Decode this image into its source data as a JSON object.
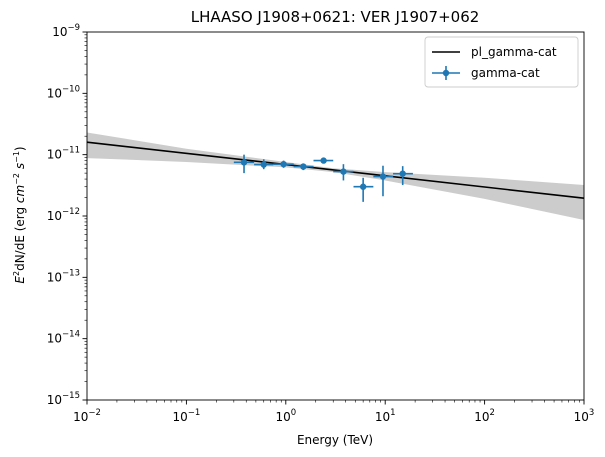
{
  "chart_data": {
    "type": "scatter",
    "title": "LHAASO J1908+0621: VER J1907+062",
    "xlabel": "Energy (TeV)",
    "ylabel": {
      "prefix": "E",
      "prefix_sup": "2",
      "main": "dN/dE (erg ",
      "unit1": "cm",
      "unit1_sup": "−2",
      "unit2": "s",
      "unit2_sup": "−1",
      "suffix": ")"
    },
    "x_scale": "log",
    "y_scale": "log",
    "xlim": [
      0.01,
      1000
    ],
    "ylim": [
      1e-15,
      1e-09
    ],
    "x_ticks": [
      {
        "value": 0.01,
        "base": "10",
        "exp": "−2"
      },
      {
        "value": 0.1,
        "base": "10",
        "exp": "−1"
      },
      {
        "value": 1,
        "base": "10",
        "exp": "0"
      },
      {
        "value": 10,
        "base": "10",
        "exp": "1"
      },
      {
        "value": 100,
        "base": "10",
        "exp": "2"
      },
      {
        "value": 1000,
        "base": "10",
        "exp": "3"
      }
    ],
    "y_ticks": [
      {
        "value": 1e-15,
        "base": "10",
        "exp": "−15"
      },
      {
        "value": 1e-14,
        "base": "10",
        "exp": "−14"
      },
      {
        "value": 1e-13,
        "base": "10",
        "exp": "−13"
      },
      {
        "value": 1e-12,
        "base": "10",
        "exp": "−12"
      },
      {
        "value": 1e-11,
        "base": "10",
        "exp": "−11"
      },
      {
        "value": 1e-10,
        "base": "10",
        "exp": "−10"
      },
      {
        "value": 1e-09,
        "base": "10",
        "exp": "−9"
      }
    ],
    "grid": false,
    "legend_position": "top-right",
    "series": [
      {
        "name": "pl_gamma-cat",
        "type": "line",
        "color": "#000000",
        "x": [
          0.01,
          1000
        ],
        "y": [
          1.6e-11,
          1.95e-12
        ]
      },
      {
        "name": "gamma-cat",
        "type": "errorbar",
        "color": "#1f77b4",
        "points": [
          {
            "x": 0.38,
            "y": 7.5e-12,
            "xerr": [
              0.3,
              0.48
            ],
            "yerr": [
              5e-12,
              1e-11
            ]
          },
          {
            "x": 0.6,
            "y": 6.9e-12,
            "xerr": [
              0.48,
              0.75
            ],
            "yerr": [
              5.8e-12,
              8.4e-12
            ]
          },
          {
            "x": 0.95,
            "y": 7e-12,
            "xerr": [
              0.75,
              1.2
            ],
            "yerr": [
              6.1e-12,
              8e-12
            ]
          },
          {
            "x": 1.5,
            "y": 6.4e-12,
            "xerr": [
              1.2,
              1.9
            ],
            "yerr": [
              5.6e-12,
              7.2e-12
            ]
          },
          {
            "x": 2.4,
            "y": 8e-12,
            "xerr": [
              1.9,
              3.0
            ],
            "yerr": [
              7.2e-12,
              8.7e-12
            ]
          },
          {
            "x": 3.8,
            "y": 5.3e-12,
            "xerr": [
              3.0,
              4.8
            ],
            "yerr": [
              3.8e-12,
              7e-12
            ]
          },
          {
            "x": 6.0,
            "y": 3e-12,
            "xerr": [
              4.8,
              7.6
            ],
            "yerr": [
              1.7e-12,
              4.2e-12
            ]
          },
          {
            "x": 9.5,
            "y": 4.4e-12,
            "xerr": [
              7.6,
              12.0
            ],
            "yerr": [
              2.1e-12,
              6.6e-12
            ]
          },
          {
            "x": 15,
            "y": 4.9e-12,
            "xerr": [
              12.0,
              19.0
            ],
            "yerr": [
              3.2e-12,
              6.5e-12
            ]
          }
        ]
      }
    ],
    "band": {
      "color": "#cccccc",
      "x": [
        0.01,
        0.1,
        1,
        3,
        10,
        100,
        1000
      ],
      "upper": [
        2.3e-11,
        1.25e-11,
        7.6e-12,
        6e-12,
        5.2e-12,
        4.2e-12,
        3.2e-12
      ],
      "lower": [
        8.8e-12,
        7.6e-12,
        6.2e-12,
        5.2e-12,
        3.8e-12,
        1.9e-12,
        8.6e-13
      ]
    }
  }
}
